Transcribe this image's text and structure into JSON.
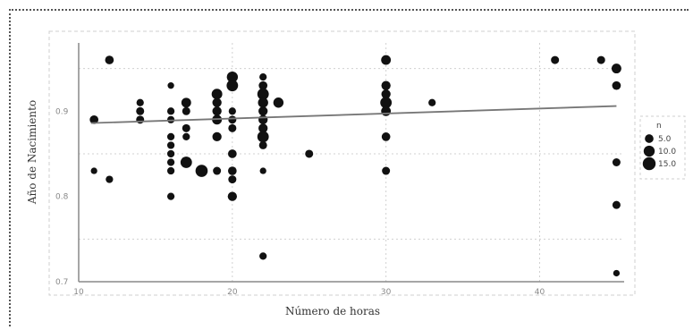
{
  "chart_data": {
    "type": "scatter",
    "title": "",
    "xlabel": "Número de horas",
    "ylabel": "Año de Nacimiento",
    "xlim": [
      10,
      45.5
    ],
    "ylim": [
      0.7,
      0.98
    ],
    "x_ticks": [
      {
        "v": 10,
        "label": "10"
      },
      {
        "v": 20,
        "label": "20"
      },
      {
        "v": 30,
        "label": "30"
      },
      {
        "v": 40,
        "label": "40"
      }
    ],
    "y_ticks": [
      {
        "v": 0.7,
        "label": "0.7"
      },
      {
        "v": 0.8,
        "label": "0.8"
      },
      {
        "v": 0.9,
        "label": "0.9"
      }
    ],
    "grid": true,
    "legend": {
      "placement": "right",
      "title": "n",
      "entries": [
        {
          "label": "5.0",
          "size": 5
        },
        {
          "label": "10.0",
          "size": 10
        },
        {
          "label": "15.0",
          "size": 15
        }
      ]
    },
    "trend_line": {
      "x": [
        10.8,
        45.0
      ],
      "y": [
        0.886,
        0.906
      ]
    },
    "points": [
      {
        "x": 11,
        "y": 0.89,
        "n": 5
      },
      {
        "x": 11,
        "y": 0.83,
        "n": 2
      },
      {
        "x": 12,
        "y": 0.82,
        "n": 3
      },
      {
        "x": 12,
        "y": 0.96,
        "n": 5
      },
      {
        "x": 14,
        "y": 0.91,
        "n": 3
      },
      {
        "x": 14,
        "y": 0.9,
        "n": 4
      },
      {
        "x": 14,
        "y": 0.89,
        "n": 4
      },
      {
        "x": 16,
        "y": 0.93,
        "n": 2
      },
      {
        "x": 16,
        "y": 0.9,
        "n": 3
      },
      {
        "x": 16,
        "y": 0.89,
        "n": 3
      },
      {
        "x": 16,
        "y": 0.87,
        "n": 3
      },
      {
        "x": 16,
        "y": 0.86,
        "n": 3
      },
      {
        "x": 16,
        "y": 0.85,
        "n": 3
      },
      {
        "x": 16,
        "y": 0.84,
        "n": 3
      },
      {
        "x": 16,
        "y": 0.83,
        "n": 3
      },
      {
        "x": 16,
        "y": 0.8,
        "n": 3
      },
      {
        "x": 17,
        "y": 0.91,
        "n": 7
      },
      {
        "x": 17,
        "y": 0.9,
        "n": 4
      },
      {
        "x": 17,
        "y": 0.88,
        "n": 4
      },
      {
        "x": 17,
        "y": 0.87,
        "n": 3
      },
      {
        "x": 17,
        "y": 0.84,
        "n": 11
      },
      {
        "x": 18,
        "y": 0.83,
        "n": 13
      },
      {
        "x": 19,
        "y": 0.92,
        "n": 9
      },
      {
        "x": 19,
        "y": 0.91,
        "n": 6
      },
      {
        "x": 19,
        "y": 0.9,
        "n": 6
      },
      {
        "x": 19,
        "y": 0.89,
        "n": 7
      },
      {
        "x": 19,
        "y": 0.87,
        "n": 6
      },
      {
        "x": 19,
        "y": 0.83,
        "n": 4
      },
      {
        "x": 20,
        "y": 0.94,
        "n": 10
      },
      {
        "x": 20,
        "y": 0.93,
        "n": 11
      },
      {
        "x": 20,
        "y": 0.9,
        "n": 3
      },
      {
        "x": 20,
        "y": 0.89,
        "n": 4
      },
      {
        "x": 20,
        "y": 0.88,
        "n": 4
      },
      {
        "x": 20,
        "y": 0.85,
        "n": 5
      },
      {
        "x": 20,
        "y": 0.83,
        "n": 5
      },
      {
        "x": 20,
        "y": 0.82,
        "n": 4
      },
      {
        "x": 20,
        "y": 0.8,
        "n": 6
      },
      {
        "x": 22,
        "y": 0.94,
        "n": 3
      },
      {
        "x": 22,
        "y": 0.93,
        "n": 5
      },
      {
        "x": 22,
        "y": 0.92,
        "n": 11
      },
      {
        "x": 22,
        "y": 0.91,
        "n": 8
      },
      {
        "x": 22,
        "y": 0.9,
        "n": 6
      },
      {
        "x": 22,
        "y": 0.89,
        "n": 6
      },
      {
        "x": 22,
        "y": 0.88,
        "n": 6
      },
      {
        "x": 22,
        "y": 0.87,
        "n": 11
      },
      {
        "x": 22,
        "y": 0.86,
        "n": 4
      },
      {
        "x": 22,
        "y": 0.83,
        "n": 2
      },
      {
        "x": 22,
        "y": 0.73,
        "n": 3
      },
      {
        "x": 23,
        "y": 0.91,
        "n": 8
      },
      {
        "x": 25,
        "y": 0.85,
        "n": 4
      },
      {
        "x": 30,
        "y": 0.96,
        "n": 7
      },
      {
        "x": 30,
        "y": 0.93,
        "n": 6
      },
      {
        "x": 30,
        "y": 0.92,
        "n": 6
      },
      {
        "x": 30,
        "y": 0.91,
        "n": 11
      },
      {
        "x": 30,
        "y": 0.9,
        "n": 7
      },
      {
        "x": 30,
        "y": 0.87,
        "n": 5
      },
      {
        "x": 30,
        "y": 0.83,
        "n": 4
      },
      {
        "x": 33,
        "y": 0.91,
        "n": 3
      },
      {
        "x": 41,
        "y": 0.96,
        "n": 4
      },
      {
        "x": 44,
        "y": 0.96,
        "n": 4
      },
      {
        "x": 45,
        "y": 0.95,
        "n": 7
      },
      {
        "x": 45,
        "y": 0.93,
        "n": 5
      },
      {
        "x": 45,
        "y": 0.84,
        "n": 4
      },
      {
        "x": 45,
        "y": 0.79,
        "n": 4
      },
      {
        "x": 45,
        "y": 0.71,
        "n": 2
      }
    ]
  }
}
